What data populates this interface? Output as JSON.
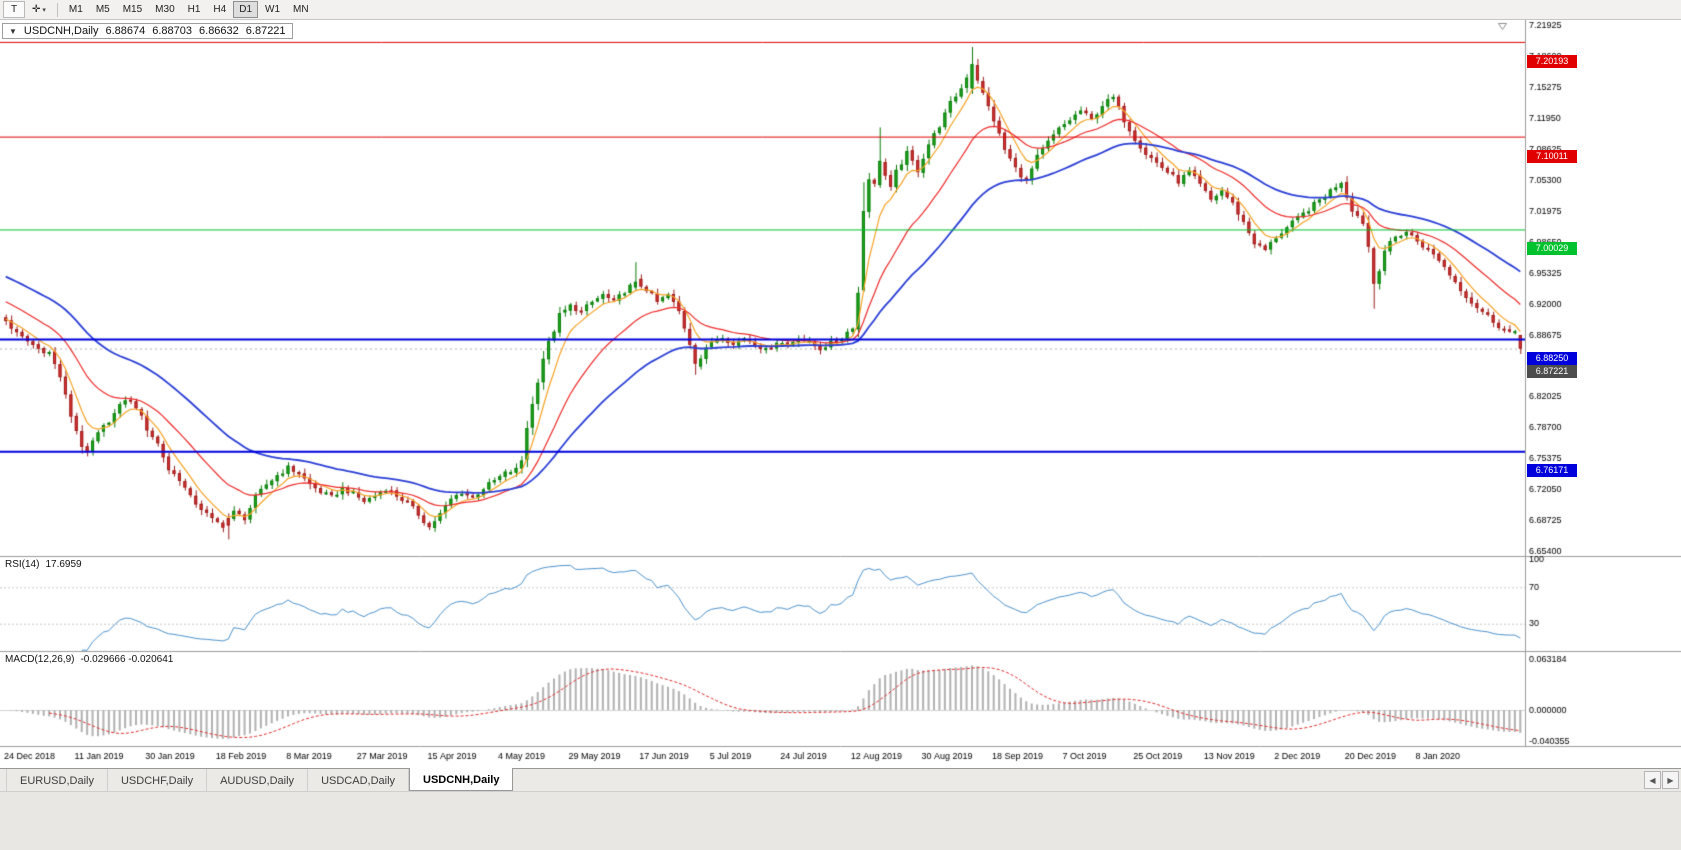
{
  "toolbar": {
    "tool_buttons": [
      {
        "name": "text-tool",
        "glyph": "T"
      },
      {
        "name": "crosshair-tool",
        "glyph": "✛",
        "caret": "▾"
      }
    ],
    "timeframes": [
      "M1",
      "M5",
      "M15",
      "M30",
      "H1",
      "H4",
      "D1",
      "W1",
      "MN"
    ],
    "active_timeframe": "D1"
  },
  "icons": {
    "collapse": "▼",
    "tab_scroll_left": "◀",
    "tab_scroll_right": "▶"
  },
  "chart": {
    "symbol": "USDCNH,Daily",
    "open": "6.88674",
    "high": "6.88703",
    "low": "6.86632",
    "close": "6.87221"
  },
  "panes": {
    "rsi": {
      "name": "RSI(14)",
      "value": "17.6959"
    },
    "macd": {
      "name": "MACD(12,26,9)",
      "value": "-0.029666 -0.020641"
    }
  },
  "axes": {
    "price_ticks": [
      "7.21925",
      "7.18600",
      "7.15275",
      "7.11950",
      "7.08625",
      "7.05300",
      "7.01975",
      "6.98650",
      "6.95325",
      "6.92000",
      "6.88675",
      "6.85350",
      "6.82025",
      "6.78700",
      "6.75375",
      "6.72050",
      "6.68725",
      "6.65400"
    ],
    "rsi_ticks": [
      "100",
      "70",
      "30"
    ],
    "macd_ticks": [
      "0.063184",
      "0.000000",
      "-0.040355"
    ]
  },
  "dates": [
    "24 Dec 2018",
    "11 Jan 2019",
    "30 Jan 2019",
    "18 Feb 2019",
    "8 Mar 2019",
    "27 Mar 2019",
    "15 Apr 2019",
    "4 May 2019",
    "29 May 2019",
    "17 Jun 2019",
    "5 Jul 2019",
    "24 Jul 2019",
    "12 Aug 2019",
    "30 Aug 2019",
    "18 Sep 2019",
    "7 Oct 2019",
    "25 Oct 2019",
    "13 Nov 2019",
    "2 Dec 2019",
    "20 Dec 2019",
    "8 Jan 2020"
  ],
  "tabs": {
    "items": [
      "EURUSD,Daily",
      "USDCHF,Daily",
      "AUDUSD,Daily",
      "USDCAD,Daily",
      "USDCNH,Daily"
    ],
    "active": "USDCNH,Daily"
  },
  "chart_data": {
    "type": "candlestick",
    "symbol": "USDCNH",
    "timeframe": "Daily",
    "bars": 280,
    "seed": 3,
    "visible_price_range": [
      6.6491,
      7.2255
    ],
    "anchors": [
      [
        0,
        6.902
      ],
      [
        2,
        6.888
      ],
      [
        4,
        6.88
      ],
      [
        6,
        6.872
      ],
      [
        8,
        6.868
      ],
      [
        10,
        6.842
      ],
      [
        12,
        6.8
      ],
      [
        14,
        6.768
      ],
      [
        15,
        6.758
      ],
      [
        16,
        6.772
      ],
      [
        18,
        6.788
      ],
      [
        20,
        6.802
      ],
      [
        22,
        6.818
      ],
      [
        24,
        6.81
      ],
      [
        26,
        6.786
      ],
      [
        28,
        6.77
      ],
      [
        30,
        6.742
      ],
      [
        32,
        6.732
      ],
      [
        34,
        6.712
      ],
      [
        36,
        6.7
      ],
      [
        38,
        6.688
      ],
      [
        40,
        6.682
      ],
      [
        42,
        6.696
      ],
      [
        44,
        6.69
      ],
      [
        46,
        6.712
      ],
      [
        48,
        6.726
      ],
      [
        50,
        6.736
      ],
      [
        52,
        6.744
      ],
      [
        54,
        6.738
      ],
      [
        56,
        6.726
      ],
      [
        58,
        6.718
      ],
      [
        60,
        6.712
      ],
      [
        62,
        6.722
      ],
      [
        64,
        6.716
      ],
      [
        66,
        6.708
      ],
      [
        68,
        6.714
      ],
      [
        70,
        6.722
      ],
      [
        72,
        6.714
      ],
      [
        74,
        6.706
      ],
      [
        76,
        6.694
      ],
      [
        78,
        6.68
      ],
      [
        80,
        6.694
      ],
      [
        82,
        6.71
      ],
      [
        84,
        6.718
      ],
      [
        86,
        6.712
      ],
      [
        88,
        6.722
      ],
      [
        90,
        6.73
      ],
      [
        92,
        6.738
      ],
      [
        94,
        6.742
      ],
      [
        95,
        6.752
      ],
      [
        96,
        6.788
      ],
      [
        97,
        6.812
      ],
      [
        98,
        6.838
      ],
      [
        99,
        6.862
      ],
      [
        100,
        6.878
      ],
      [
        101,
        6.892
      ],
      [
        102,
        6.908
      ],
      [
        104,
        6.918
      ],
      [
        106,
        6.912
      ],
      [
        108,
        6.922
      ],
      [
        110,
        6.93
      ],
      [
        112,
        6.922
      ],
      [
        114,
        6.934
      ],
      [
        116,
        6.944
      ],
      [
        118,
        6.936
      ],
      [
        120,
        6.922
      ],
      [
        122,
        6.93
      ],
      [
        124,
        6.912
      ],
      [
        126,
        6.878
      ],
      [
        127,
        6.856
      ],
      [
        128,
        6.862
      ],
      [
        130,
        6.88
      ],
      [
        132,
        6.886
      ],
      [
        134,
        6.876
      ],
      [
        136,
        6.884
      ],
      [
        138,
        6.878
      ],
      [
        140,
        6.87
      ],
      [
        142,
        6.88
      ],
      [
        144,
        6.876
      ],
      [
        146,
        6.884
      ],
      [
        148,
        6.878
      ],
      [
        150,
        6.872
      ],
      [
        152,
        6.878
      ],
      [
        154,
        6.884
      ],
      [
        156,
        6.896
      ],
      [
        157,
        6.932
      ],
      [
        158,
        7.02
      ],
      [
        159,
        7.056
      ],
      [
        160,
        7.048
      ],
      [
        161,
        7.074
      ],
      [
        162,
        7.058
      ],
      [
        163,
        7.044
      ],
      [
        164,
        7.062
      ],
      [
        166,
        7.082
      ],
      [
        168,
        7.064
      ],
      [
        170,
        7.092
      ],
      [
        172,
        7.112
      ],
      [
        174,
        7.136
      ],
      [
        176,
        7.152
      ],
      [
        178,
        7.178
      ],
      [
        179,
        7.162
      ],
      [
        180,
        7.146
      ],
      [
        182,
        7.118
      ],
      [
        184,
        7.086
      ],
      [
        186,
        7.066
      ],
      [
        188,
        7.052
      ],
      [
        190,
        7.078
      ],
      [
        192,
        7.094
      ],
      [
        194,
        7.108
      ],
      [
        196,
        7.118
      ],
      [
        198,
        7.128
      ],
      [
        200,
        7.118
      ],
      [
        202,
        7.134
      ],
      [
        204,
        7.142
      ],
      [
        206,
        7.118
      ],
      [
        208,
        7.098
      ],
      [
        210,
        7.082
      ],
      [
        212,
        7.072
      ],
      [
        214,
        7.062
      ],
      [
        216,
        7.052
      ],
      [
        218,
        7.062
      ],
      [
        220,
        7.048
      ],
      [
        222,
        7.032
      ],
      [
        224,
        7.042
      ],
      [
        226,
        7.028
      ],
      [
        228,
        7.008
      ],
      [
        230,
        6.986
      ],
      [
        232,
        6.978
      ],
      [
        234,
        6.992
      ],
      [
        236,
        7.002
      ],
      [
        238,
        7.012
      ],
      [
        240,
        7.022
      ],
      [
        242,
        7.032
      ],
      [
        244,
        7.042
      ],
      [
        246,
        7.052
      ],
      [
        247,
        7.036
      ],
      [
        248,
        7.022
      ],
      [
        250,
        7.008
      ],
      [
        251,
        6.982
      ],
      [
        252,
        6.942
      ],
      [
        253,
        6.958
      ],
      [
        254,
        6.978
      ],
      [
        256,
        6.992
      ],
      [
        258,
        6.998
      ],
      [
        260,
        6.988
      ],
      [
        262,
        6.978
      ],
      [
        264,
        6.968
      ],
      [
        266,
        6.952
      ],
      [
        268,
        6.936
      ],
      [
        270,
        6.922
      ],
      [
        272,
        6.912
      ],
      [
        274,
        6.902
      ],
      [
        276,
        6.892
      ],
      [
        278,
        6.888
      ],
      [
        279,
        6.884
      ]
    ],
    "forced_bars": [
      {
        "i": 41,
        "o": 6.69,
        "h": 6.695,
        "l": 6.667,
        "c": 6.682
      },
      {
        "i": 116,
        "o": 6.938,
        "h": 6.965,
        "l": 6.935,
        "c": 6.944
      },
      {
        "i": 127,
        "o": 6.876,
        "h": 6.878,
        "l": 6.844,
        "c": 6.856
      },
      {
        "i": 158,
        "o": 6.935,
        "h": 7.051,
        "l": 6.933,
        "c": 7.02
      },
      {
        "i": 161,
        "o": 7.048,
        "h": 7.11,
        "l": 7.045,
        "c": 7.074
      },
      {
        "i": 178,
        "o": 7.152,
        "h": 7.1965,
        "l": 7.146,
        "c": 7.178
      },
      {
        "i": 252,
        "o": 6.98,
        "h": 6.982,
        "l": 6.915,
        "c": 6.942
      },
      {
        "i": 279,
        "o": 6.88674,
        "h": 6.88703,
        "l": 6.86632,
        "c": 6.87221
      }
    ],
    "moving_averages": [
      {
        "period": 6,
        "color": "#f7a428",
        "seed": 6.905
      },
      {
        "period": 18,
        "color": "#ee2c2c",
        "seed": 6.925
      },
      {
        "period": 40,
        "color": "#2b3fd6",
        "seed": 6.952
      }
    ],
    "levels": [
      {
        "price": 7.20193,
        "label": "7.20193",
        "color": "#e00000",
        "line_width": 1
      },
      {
        "price": 7.10011,
        "label": "7.10011",
        "color": "#e00000",
        "line_width": 1
      },
      {
        "price": 7.00029,
        "label": "7.00029",
        "color": "#00c22e",
        "line_width": 1
      },
      {
        "price": 6.8825,
        "label": "6.88250",
        "color": "#0000dc",
        "line_width": 2
      },
      {
        "price": 6.76171,
        "label": "6.76171",
        "color": "#0000dc",
        "line_width": 2
      }
    ],
    "bid": {
      "price": 6.87221,
      "label": "6.87221",
      "color": "#4d4d4d"
    },
    "candle_colors": {
      "up_fill": "#1fae1f",
      "up_stroke": "#0f7c0f",
      "down_fill": "#e23434",
      "down_stroke": "#99201f"
    },
    "indicators": {
      "rsi": {
        "period": 14,
        "current": 17.6959,
        "color": "#4f94cd",
        "levels": [
          30,
          70
        ]
      },
      "macd": {
        "fast": 12,
        "slow": 26,
        "signal": 9,
        "current_macd": -0.029666,
        "current_signal": -0.020641,
        "histogram_color": "#b2b2b2",
        "signal_color": "#e03030"
      }
    }
  }
}
